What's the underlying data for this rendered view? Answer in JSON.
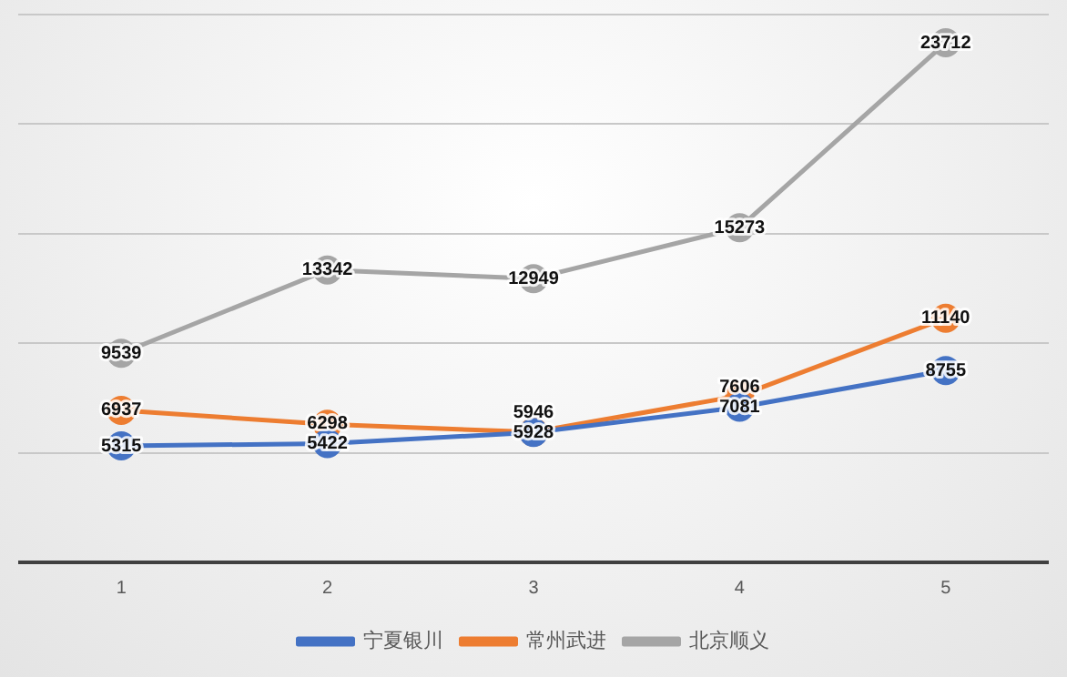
{
  "chart_data": {
    "type": "line",
    "categories": [
      "1",
      "2",
      "3",
      "4",
      "5"
    ],
    "series": [
      {
        "name": "宁夏银川",
        "color": "#4472c4",
        "values": [
          5315,
          5422,
          5928,
          7081,
          8755
        ]
      },
      {
        "name": "常州武进",
        "color": "#ed7d31",
        "values": [
          6937,
          6298,
          5946,
          7606,
          11140
        ]
      },
      {
        "name": "北京顺义",
        "color": "#a5a5a5",
        "values": [
          9539,
          13342,
          12949,
          15273,
          23712
        ]
      }
    ],
    "ylim": [
      0,
      25000
    ],
    "yticks": [
      {
        "value": 0,
        "label": null
      },
      {
        "value": 5000,
        "label": null
      },
      {
        "value": 10000,
        "label": null
      },
      {
        "value": 15000,
        "label": null
      },
      {
        "value": 20000,
        "label": null
      },
      {
        "value": 25000,
        "label": null
      }
    ],
    "grid": "y",
    "tick_labels": "x",
    "legend": "bottom",
    "marker": "circle",
    "data_labels": true
  }
}
